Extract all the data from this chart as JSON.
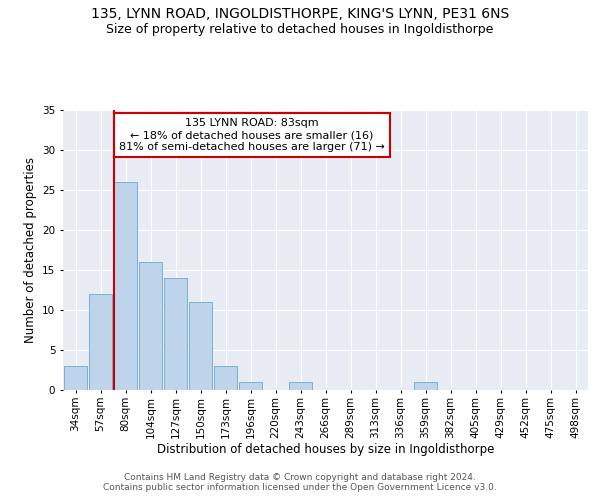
{
  "title1": "135, LYNN ROAD, INGOLDISTHORPE, KING'S LYNN, PE31 6NS",
  "title2": "Size of property relative to detached houses in Ingoldisthorpe",
  "xlabel": "Distribution of detached houses by size in Ingoldisthorpe",
  "ylabel": "Number of detached properties",
  "bin_labels": [
    "34sqm",
    "57sqm",
    "80sqm",
    "104sqm",
    "127sqm",
    "150sqm",
    "173sqm",
    "196sqm",
    "220sqm",
    "243sqm",
    "266sqm",
    "289sqm",
    "313sqm",
    "336sqm",
    "359sqm",
    "382sqm",
    "405sqm",
    "429sqm",
    "452sqm",
    "475sqm",
    "498sqm"
  ],
  "bar_values": [
    3,
    12,
    26,
    16,
    14,
    11,
    3,
    1,
    0,
    1,
    0,
    0,
    0,
    0,
    1,
    0,
    0,
    0,
    0,
    0,
    0
  ],
  "bar_color": "#bdd4eb",
  "bar_edge_color": "#7aafd4",
  "vline_x_idx": 2,
  "vline_color": "#cc0000",
  "annotation_line1": "135 LYNN ROAD: 83sqm",
  "annotation_line2": "← 18% of detached houses are smaller (16)",
  "annotation_line3": "81% of semi-detached houses are larger (71) →",
  "annotation_box_color": "#cc0000",
  "ylim": [
    0,
    35
  ],
  "yticks": [
    0,
    5,
    10,
    15,
    20,
    25,
    30,
    35
  ],
  "background_color": "#e8edf5",
  "footer_text": "Contains HM Land Registry data © Crown copyright and database right 2024.\nContains public sector information licensed under the Open Government Licence v3.0.",
  "title1_fontsize": 10,
  "title2_fontsize": 9,
  "xlabel_fontsize": 8.5,
  "ylabel_fontsize": 8.5,
  "tick_fontsize": 7.5,
  "annotation_fontsize": 8,
  "footer_fontsize": 6.5
}
